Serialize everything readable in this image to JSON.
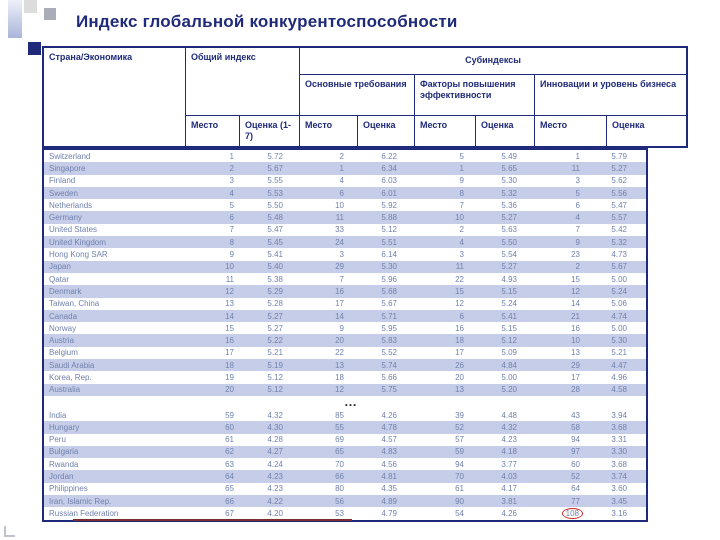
{
  "title": "Индекс глобальной конкурентоспособности",
  "colors": {
    "navy": "#1f2b7a",
    "stripe": "#c6cde8",
    "body_text": "#7282ad",
    "highlight_red": "#cc2b2b",
    "underline_red": "#7c2b2e"
  },
  "table": {
    "col_country": "Страна/Экономика",
    "col_overall": "Общий индекс",
    "col_subindexes": "Субиндексы",
    "group_basic": "Основные требования",
    "group_efficiency": "Факторы повышения эффективности",
    "group_innovation": "Инновации и уровень бизнеса",
    "rank_label": "Место",
    "score_label": "Оценка",
    "overall_score_label": "Оценка (1-7)",
    "ellipsis": "…",
    "rows_top": [
      [
        "Switzerland",
        "1",
        "5.72",
        "2",
        "6.22",
        "5",
        "5.49",
        "1",
        "5.79"
      ],
      [
        "Singapore",
        "2",
        "5.67",
        "1",
        "6.34",
        "1",
        "5.65",
        "11",
        "5.27"
      ],
      [
        "Finland",
        "3",
        "5.55",
        "4",
        "6.03",
        "9",
        "5.30",
        "3",
        "5.62"
      ],
      [
        "Sweden",
        "4",
        "5.53",
        "6",
        "6.01",
        "8",
        "5.32",
        "5",
        "5.56"
      ],
      [
        "Netherlands",
        "5",
        "5.50",
        "10",
        "5.92",
        "7",
        "5.36",
        "6",
        "5.47"
      ],
      [
        "Germany",
        "6",
        "5.48",
        "11",
        "5.88",
        "10",
        "5.27",
        "4",
        "5.57"
      ],
      [
        "United States",
        "7",
        "5.47",
        "33",
        "5.12",
        "2",
        "5.63",
        "7",
        "5.42"
      ],
      [
        "United Kingdom",
        "8",
        "5.45",
        "24",
        "5.51",
        "4",
        "5.50",
        "9",
        "5.32"
      ],
      [
        "Hong Kong SAR",
        "9",
        "5.41",
        "3",
        "6.14",
        "3",
        "5.54",
        "23",
        "4.73"
      ],
      [
        "Japan",
        "10",
        "5.40",
        "29",
        "5.30",
        "11",
        "5.27",
        "2",
        "5.67"
      ],
      [
        "Qatar",
        "11",
        "5.38",
        "7",
        "5.96",
        "22",
        "4.93",
        "15",
        "5.00"
      ],
      [
        "Denmark",
        "12",
        "5.29",
        "16",
        "5.68",
        "15",
        "5.15",
        "12",
        "5.24"
      ],
      [
        "Taiwan, China",
        "13",
        "5.28",
        "17",
        "5.67",
        "12",
        "5.24",
        "14",
        "5.06"
      ],
      [
        "Canada",
        "14",
        "5.27",
        "14",
        "5.71",
        "6",
        "5.41",
        "21",
        "4.74"
      ],
      [
        "Norway",
        "15",
        "5.27",
        "9",
        "5.95",
        "16",
        "5.15",
        "16",
        "5.00"
      ],
      [
        "Austria",
        "16",
        "5.22",
        "20",
        "5.83",
        "18",
        "5.12",
        "10",
        "5.30"
      ],
      [
        "Belgium",
        "17",
        "5.21",
        "22",
        "5.52",
        "17",
        "5.09",
        "13",
        "5.21"
      ],
      [
        "Saudi Arabia",
        "18",
        "5.19",
        "13",
        "5.74",
        "26",
        "4.84",
        "29",
        "4.47"
      ],
      [
        "Korea, Rep.",
        "19",
        "5.12",
        "18",
        "5.66",
        "20",
        "5.00",
        "17",
        "4.96"
      ],
      [
        "Australia",
        "20",
        "5.12",
        "12",
        "5.75",
        "13",
        "5.20",
        "28",
        "4.58"
      ]
    ],
    "rows_bottom": [
      [
        "India",
        "59",
        "4.32",
        "85",
        "4.26",
        "39",
        "4.48",
        "43",
        "3.94"
      ],
      [
        "Hungary",
        "60",
        "4.30",
        "55",
        "4.78",
        "52",
        "4.32",
        "58",
        "3.68"
      ],
      [
        "Peru",
        "61",
        "4.28",
        "69",
        "4.57",
        "57",
        "4.23",
        "94",
        "3.31"
      ],
      [
        "Bulgaria",
        "62",
        "4.27",
        "65",
        "4.83",
        "59",
        "4.18",
        "97",
        "3.30"
      ],
      [
        "Rwanda",
        "63",
        "4.24",
        "70",
        "4.56",
        "94",
        "3.77",
        "60",
        "3.68"
      ],
      [
        "Jordan",
        "64",
        "4.23",
        "66",
        "4.81",
        "70",
        "4.03",
        "52",
        "3.74"
      ],
      [
        "Philippines",
        "65",
        "4.23",
        "80",
        "4.35",
        "61",
        "4.17",
        "64",
        "3.60"
      ],
      [
        "Iran, Islamic Rep.",
        "66",
        "4.22",
        "56",
        "4.89",
        "90",
        "3.81",
        "77",
        "3.45"
      ],
      [
        "Russian Federation",
        "67",
        "4.20",
        "53",
        "4.79",
        "54",
        "4.26",
        "108",
        "3.16"
      ]
    ],
    "highlight": {
      "country": "Russian Federation",
      "cell_index": 7,
      "value": "108"
    }
  }
}
